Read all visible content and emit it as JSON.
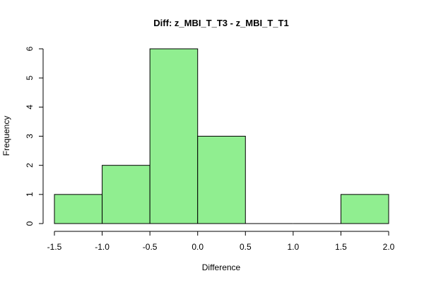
{
  "chart_data": {
    "type": "bar",
    "title": "Diff: z_MBI_T_T3 - z_MBI_T_T1",
    "xlabel": "Difference",
    "ylabel": "Frequency",
    "bins": [
      {
        "from": -1.5,
        "to": -1.0,
        "count": 1
      },
      {
        "from": -1.0,
        "to": -0.5,
        "count": 2
      },
      {
        "from": -0.5,
        "to": 0.0,
        "count": 6
      },
      {
        "from": 0.0,
        "to": 0.5,
        "count": 3
      },
      {
        "from": 0.5,
        "to": 1.0,
        "count": 0
      },
      {
        "from": 1.0,
        "to": 1.5,
        "count": 0
      },
      {
        "from": 1.5,
        "to": 2.0,
        "count": 1
      }
    ],
    "xlim": [
      -1.5,
      2.0
    ],
    "ylim": [
      0,
      6
    ],
    "x_ticks": [
      "-1.5",
      "-1.0",
      "-0.5",
      "0.0",
      "0.5",
      "1.0",
      "1.5",
      "2.0"
    ],
    "y_ticks": [
      "0",
      "1",
      "2",
      "3",
      "4",
      "5",
      "6"
    ],
    "bar_color": "#90EE90",
    "grid": false
  }
}
